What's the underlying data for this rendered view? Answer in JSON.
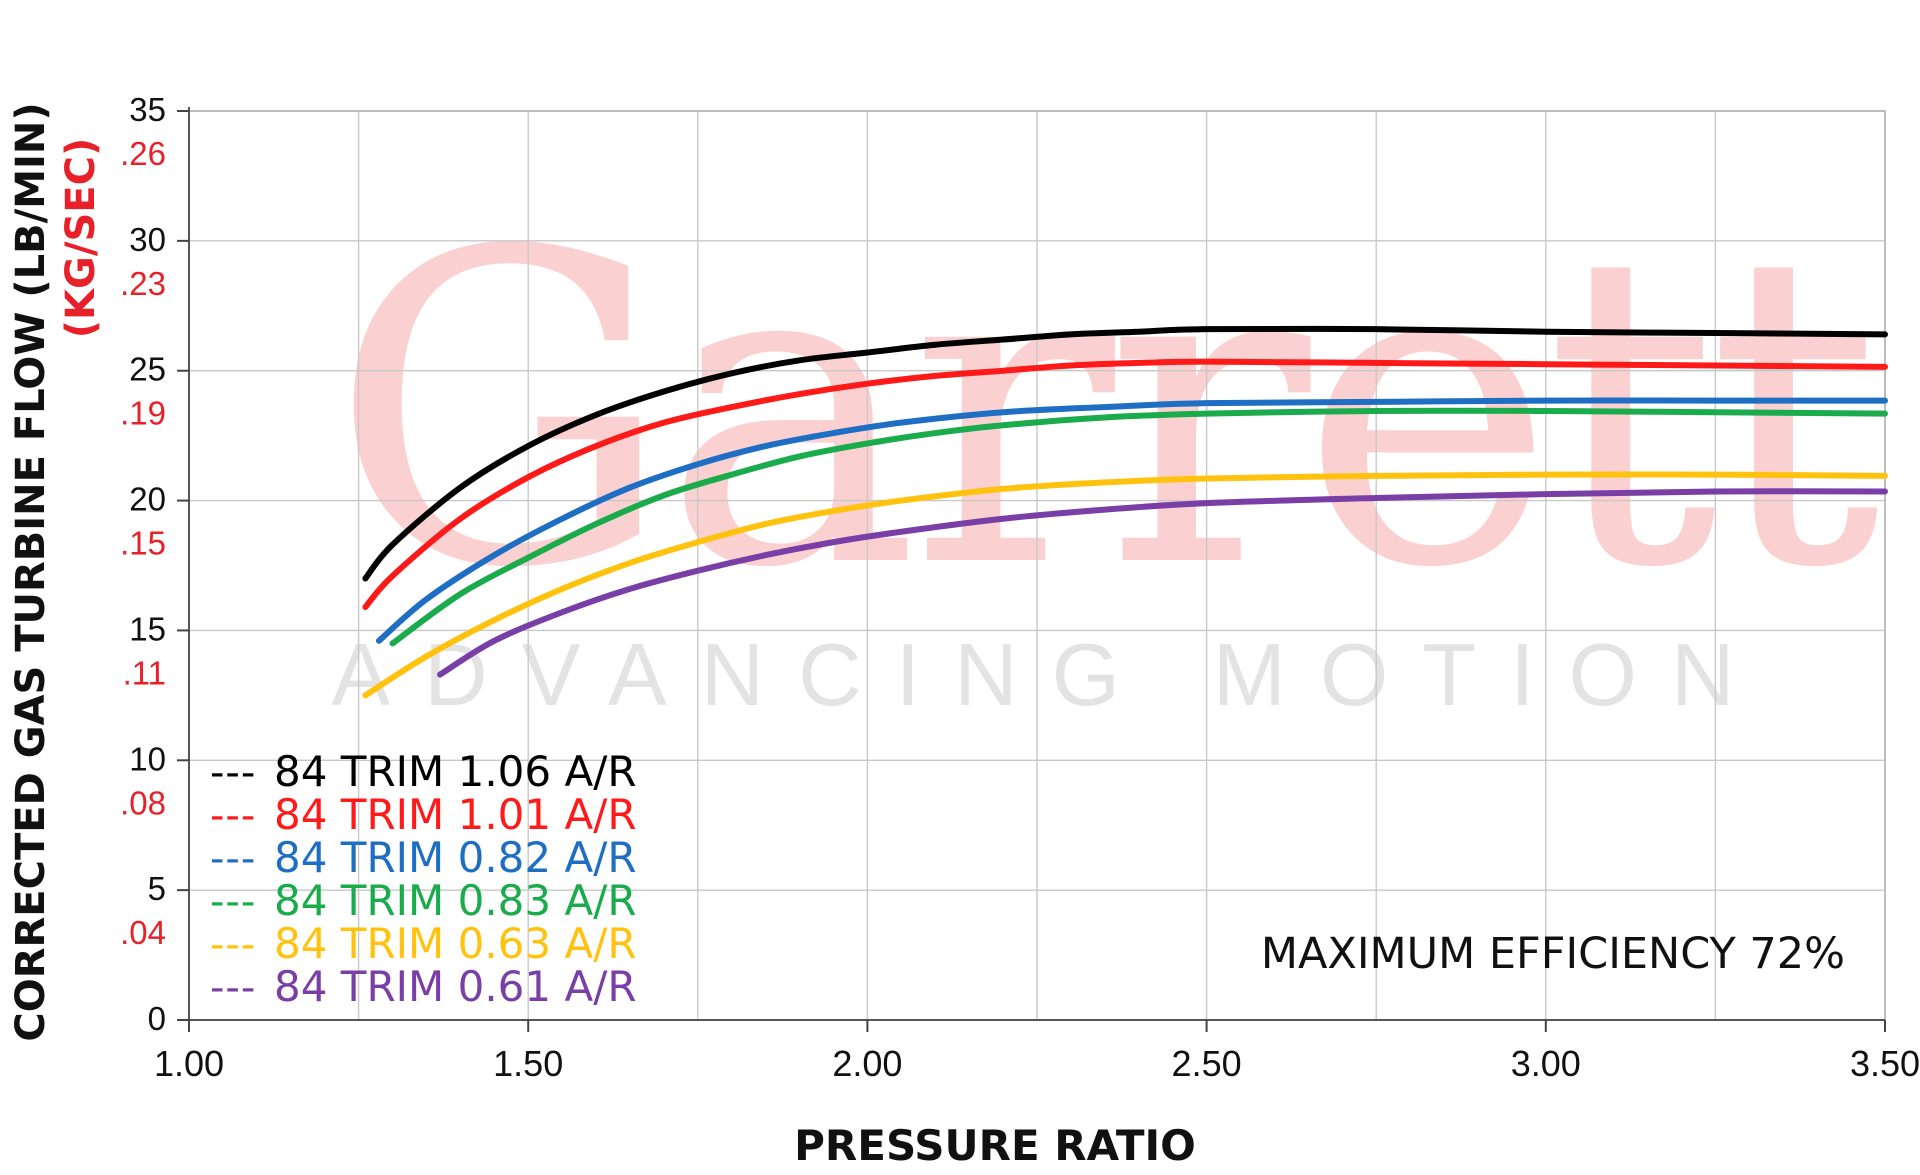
{
  "chart_data": {
    "type": "line",
    "title": "",
    "xlabel": "PRESSURE RATIO",
    "ylabel": "CORRECTED GAS TURBINE FLOW (LB/MIN)",
    "ylabel_secondary": "(KG/SEC)",
    "xlim": [
      1.0,
      3.5
    ],
    "ylim": [
      0,
      35
    ],
    "x_ticks": [
      {
        "value": 1.0,
        "label": "1.00"
      },
      {
        "value": 1.5,
        "label": "1.50"
      },
      {
        "value": 2.0,
        "label": "2.00"
      },
      {
        "value": 2.5,
        "label": "2.50"
      },
      {
        "value": 3.0,
        "label": "3.00"
      },
      {
        "value": 3.5,
        "label": "3.50"
      }
    ],
    "y_ticks": [
      {
        "value": 0,
        "label": "0",
        "secondary": ""
      },
      {
        "value": 5,
        "label": "5",
        "secondary": ".04"
      },
      {
        "value": 10,
        "label": "10",
        "secondary": ".08"
      },
      {
        "value": 15,
        "label": "15",
        "secondary": ".11"
      },
      {
        "value": 20,
        "label": "20",
        "secondary": ".15"
      },
      {
        "value": 25,
        "label": "25",
        "secondary": ".19"
      },
      {
        "value": 30,
        "label": "30",
        "secondary": ".23"
      },
      {
        "value": 35,
        "label": "35",
        "secondary": ".26"
      }
    ],
    "grid": true,
    "legend_position": "bottom-left",
    "annotation": "MAXIMUM EFFICIENCY 72%",
    "watermark": {
      "brand": "Garrett",
      "tagline": "ADVANCING MOTION"
    },
    "series": [
      {
        "name": "84 TRIM 1.06 A/R",
        "legend_marker": "---",
        "color": "#000000",
        "points": [
          [
            1.26,
            17.0
          ],
          [
            1.3,
            18.3
          ],
          [
            1.4,
            20.5
          ],
          [
            1.5,
            22.1
          ],
          [
            1.6,
            23.3
          ],
          [
            1.7,
            24.2
          ],
          [
            1.8,
            24.9
          ],
          [
            1.9,
            25.4
          ],
          [
            2.0,
            25.7
          ],
          [
            2.1,
            26.0
          ],
          [
            2.2,
            26.2
          ],
          [
            2.3,
            26.4
          ],
          [
            2.4,
            26.5
          ],
          [
            2.5,
            26.6
          ],
          [
            2.75,
            26.6
          ],
          [
            3.0,
            26.5
          ],
          [
            3.25,
            26.45
          ],
          [
            3.5,
            26.4
          ]
        ]
      },
      {
        "name": "84 TRIM 1.01 A/R",
        "legend_marker": "---",
        "color": "#ff1a1a",
        "points": [
          [
            1.26,
            15.9
          ],
          [
            1.3,
            17.1
          ],
          [
            1.4,
            19.3
          ],
          [
            1.5,
            20.9
          ],
          [
            1.6,
            22.1
          ],
          [
            1.7,
            23.0
          ],
          [
            1.8,
            23.6
          ],
          [
            1.9,
            24.1
          ],
          [
            2.0,
            24.5
          ],
          [
            2.1,
            24.8
          ],
          [
            2.2,
            25.0
          ],
          [
            2.3,
            25.2
          ],
          [
            2.4,
            25.3
          ],
          [
            2.5,
            25.35
          ],
          [
            2.75,
            25.3
          ],
          [
            3.0,
            25.25
          ],
          [
            3.25,
            25.2
          ],
          [
            3.5,
            25.15
          ]
        ]
      },
      {
        "name": "84 TRIM 0.82 A/R",
        "legend_marker": "---",
        "color": "#1e6fc4",
        "points": [
          [
            1.28,
            14.6
          ],
          [
            1.35,
            16.2
          ],
          [
            1.45,
            17.9
          ],
          [
            1.55,
            19.3
          ],
          [
            1.65,
            20.5
          ],
          [
            1.75,
            21.4
          ],
          [
            1.85,
            22.1
          ],
          [
            1.95,
            22.6
          ],
          [
            2.05,
            23.0
          ],
          [
            2.2,
            23.4
          ],
          [
            2.35,
            23.6
          ],
          [
            2.5,
            23.75
          ],
          [
            2.75,
            23.8
          ],
          [
            3.0,
            23.85
          ],
          [
            3.25,
            23.85
          ],
          [
            3.5,
            23.85
          ]
        ]
      },
      {
        "name": "84 TRIM 0.83 A/R",
        "legend_marker": "---",
        "color": "#1aab4c",
        "points": [
          [
            1.3,
            14.5
          ],
          [
            1.4,
            16.4
          ],
          [
            1.5,
            17.8
          ],
          [
            1.6,
            19.1
          ],
          [
            1.7,
            20.2
          ],
          [
            1.8,
            21.0
          ],
          [
            1.9,
            21.7
          ],
          [
            2.0,
            22.2
          ],
          [
            2.1,
            22.6
          ],
          [
            2.2,
            22.9
          ],
          [
            2.35,
            23.2
          ],
          [
            2.5,
            23.35
          ],
          [
            2.75,
            23.45
          ],
          [
            3.0,
            23.45
          ],
          [
            3.25,
            23.4
          ],
          [
            3.5,
            23.35
          ]
        ]
      },
      {
        "name": "84 TRIM 0.63 A/R",
        "legend_marker": "---",
        "color": "#ffc20e",
        "points": [
          [
            1.26,
            12.5
          ],
          [
            1.35,
            14.0
          ],
          [
            1.45,
            15.4
          ],
          [
            1.55,
            16.6
          ],
          [
            1.65,
            17.6
          ],
          [
            1.75,
            18.4
          ],
          [
            1.85,
            19.1
          ],
          [
            1.95,
            19.6
          ],
          [
            2.05,
            20.0
          ],
          [
            2.2,
            20.45
          ],
          [
            2.35,
            20.7
          ],
          [
            2.5,
            20.85
          ],
          [
            2.75,
            20.95
          ],
          [
            3.0,
            21.0
          ],
          [
            3.25,
            21.0
          ],
          [
            3.5,
            20.95
          ]
        ]
      },
      {
        "name": "84 TRIM 0.61 A/R",
        "legend_marker": "---",
        "color": "#7a3fa6",
        "points": [
          [
            1.37,
            13.3
          ],
          [
            1.45,
            14.6
          ],
          [
            1.55,
            15.7
          ],
          [
            1.65,
            16.6
          ],
          [
            1.75,
            17.3
          ],
          [
            1.85,
            17.9
          ],
          [
            1.95,
            18.4
          ],
          [
            2.05,
            18.8
          ],
          [
            2.2,
            19.3
          ],
          [
            2.35,
            19.65
          ],
          [
            2.5,
            19.9
          ],
          [
            2.75,
            20.1
          ],
          [
            3.0,
            20.25
          ],
          [
            3.25,
            20.35
          ],
          [
            3.5,
            20.35
          ]
        ]
      }
    ]
  }
}
